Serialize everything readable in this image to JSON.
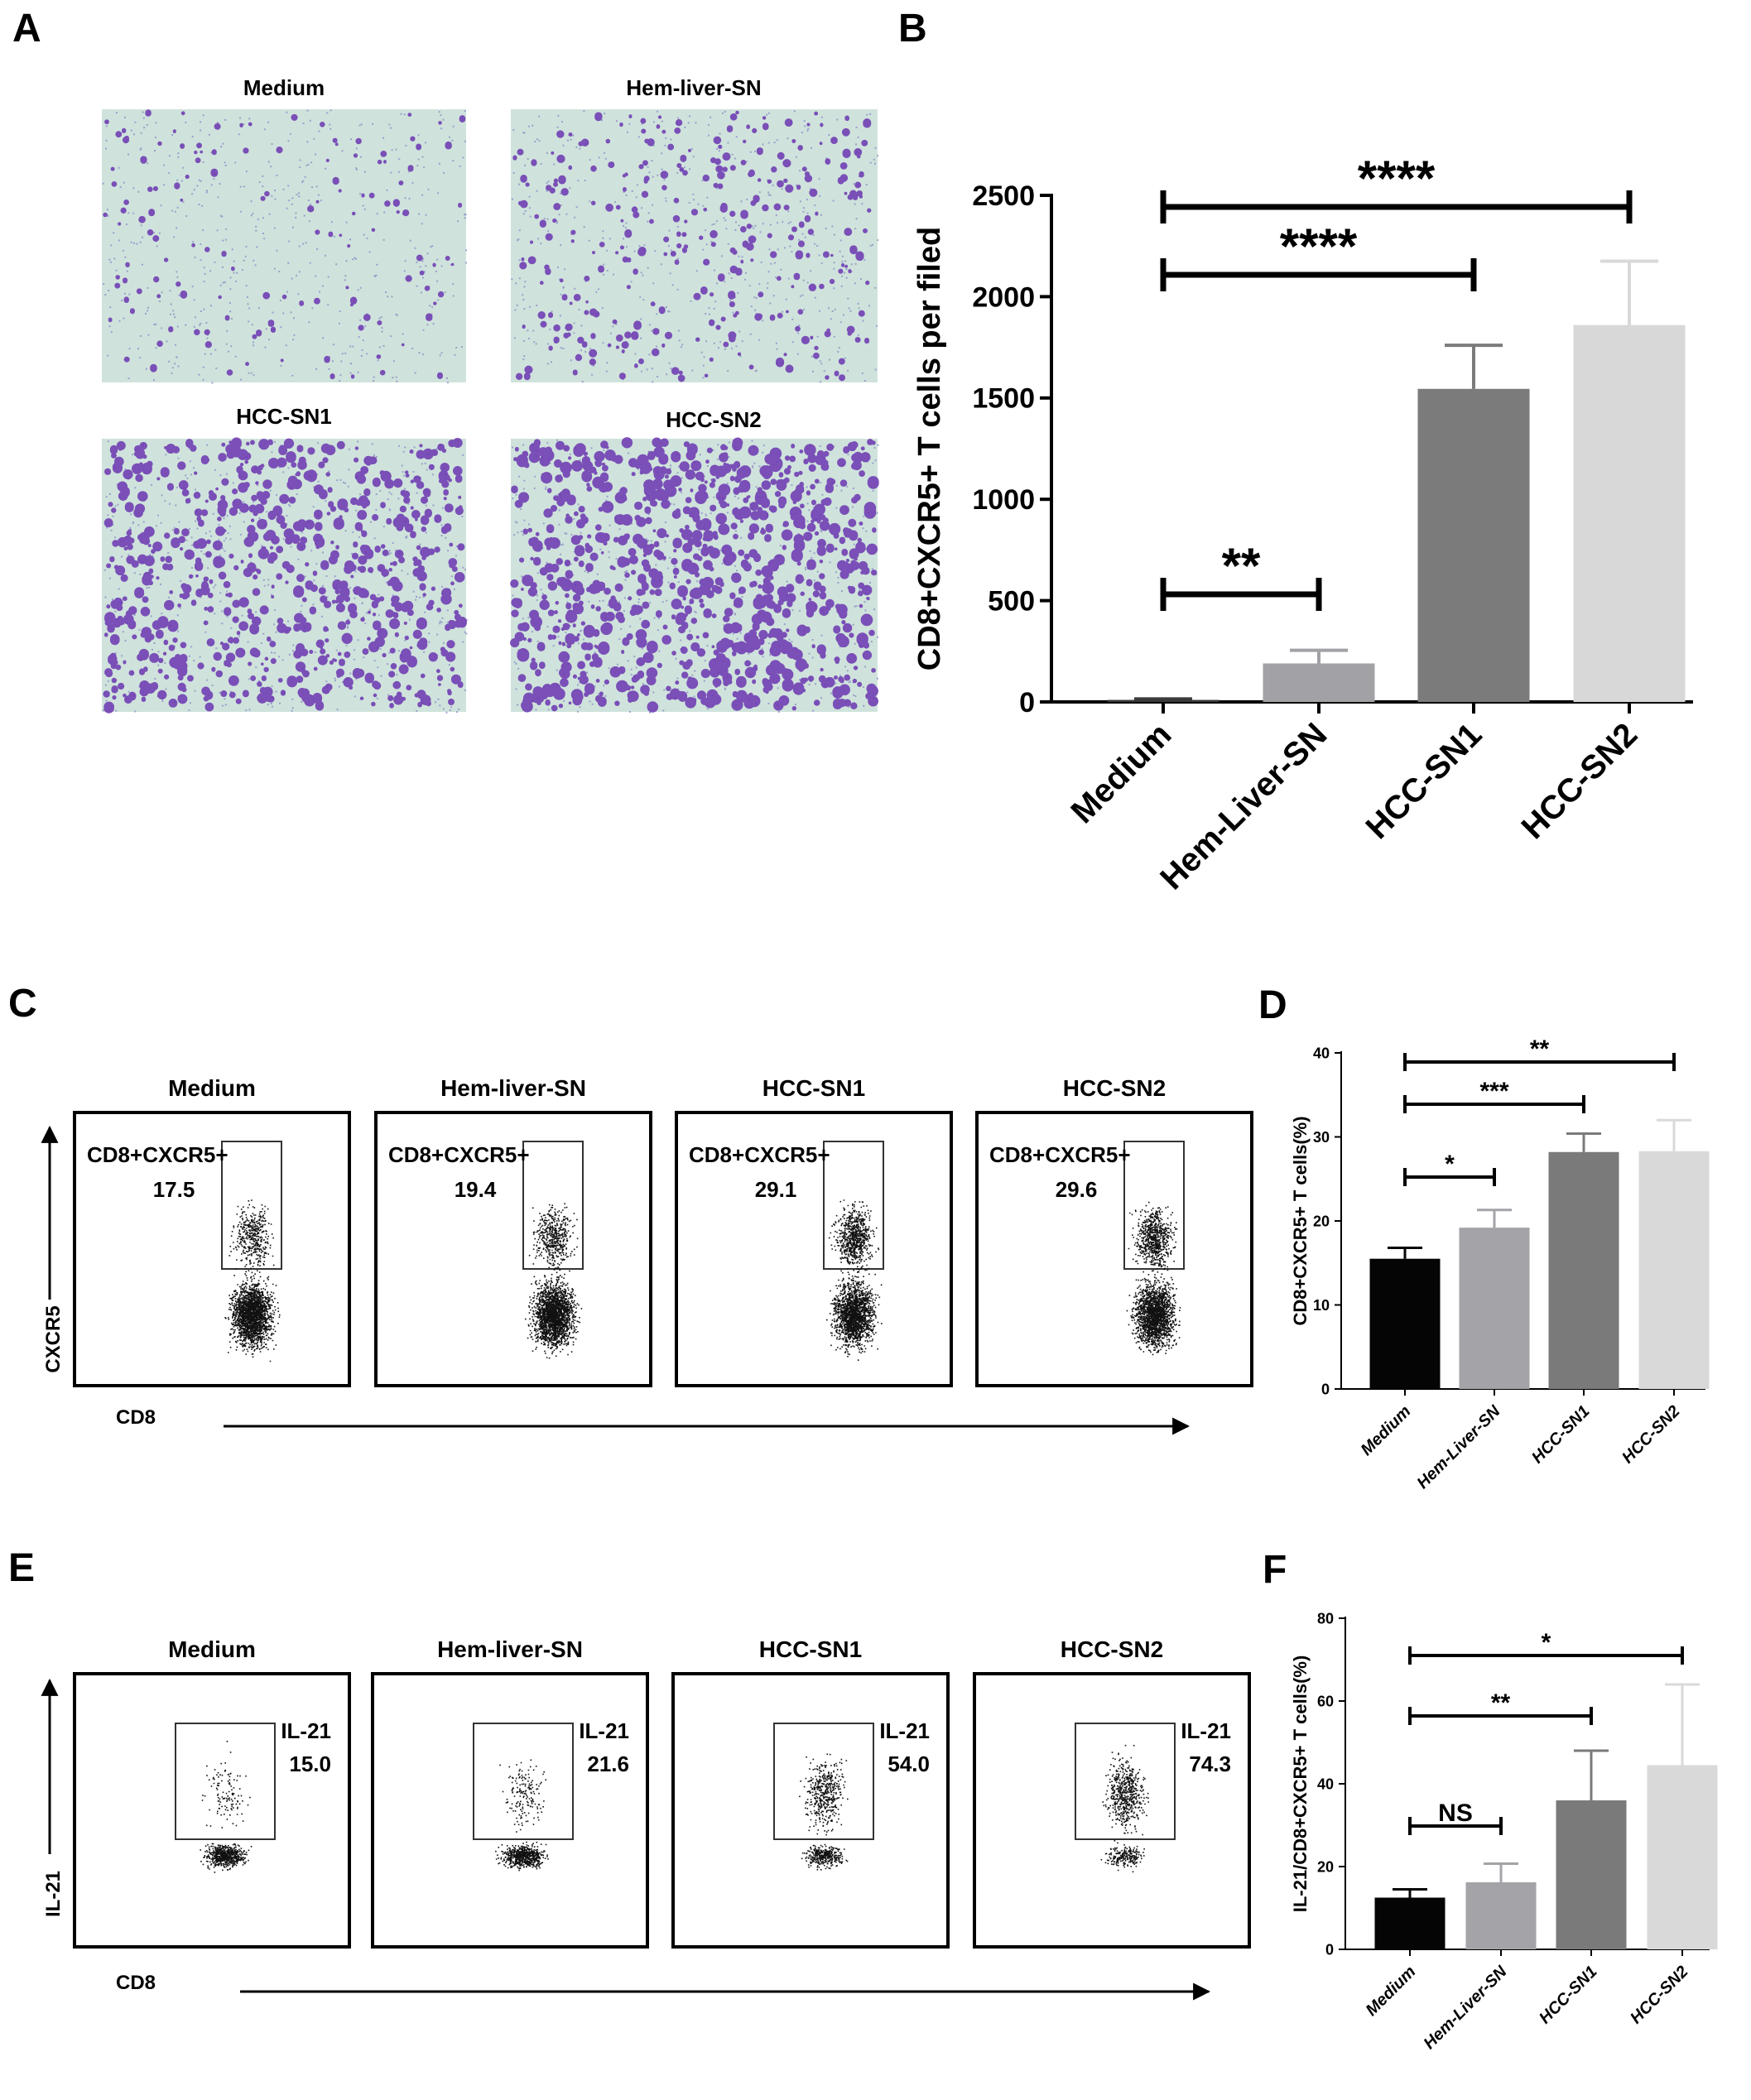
{
  "panels": {
    "A": {
      "letter": "A",
      "images": [
        {
          "label": "Medium",
          "density": 0.15
        },
        {
          "label": "Hem-liver-SN",
          "density": 0.35
        },
        {
          "label": "HCC-SN1",
          "density": 0.8
        },
        {
          "label": "HCC-SN2",
          "density": 1.0
        }
      ]
    },
    "B": {
      "letter": "B"
    },
    "C": {
      "letter": "C",
      "y_axis": "CXCR5",
      "x_axis": "CD8",
      "plots": [
        {
          "title": "Medium",
          "gate": "CD8+CXCR5+",
          "value": "17.5"
        },
        {
          "title": "Hem-liver-SN",
          "gate": "CD8+CXCR5+",
          "value": "19.4"
        },
        {
          "title": "HCC-SN1",
          "gate": "CD8+CXCR5+",
          "value": "29.1"
        },
        {
          "title": "HCC-SN2",
          "gate": "CD8+CXCR5+",
          "value": "29.6"
        }
      ]
    },
    "D": {
      "letter": "D"
    },
    "E": {
      "letter": "E",
      "y_axis": "IL-21",
      "x_axis": "CD8",
      "plots": [
        {
          "title": "Medium",
          "gate": "IL-21",
          "value": "15.0"
        },
        {
          "title": "Hem-liver-SN",
          "gate": "IL-21",
          "value": "21.6"
        },
        {
          "title": "HCC-SN1",
          "gate": "IL-21",
          "value": "54.0"
        },
        {
          "title": "HCC-SN2",
          "gate": "IL-21",
          "value": "74.3"
        }
      ]
    },
    "F": {
      "letter": "F"
    }
  },
  "chart_data": [
    {
      "panel": "B",
      "type": "bar",
      "categories": [
        "Medium",
        "Hem-Liver-SN",
        "HCC-SN1",
        "HCC-SN2"
      ],
      "values": [
        10,
        190,
        1545,
        1860
      ],
      "errors": [
        5,
        65,
        215,
        315
      ],
      "colors": [
        "#3a3a3a",
        "#a2a2a6",
        "#7b7b7b",
        "#d8d8d8"
      ],
      "ylabel": "CD8+CXCR5+ T cells per filed",
      "ylim": [
        0,
        2500
      ],
      "yticks": [
        0,
        500,
        1000,
        1500,
        2000,
        2500
      ],
      "significance": [
        {
          "from": 0,
          "to": 3,
          "label": "****"
        },
        {
          "from": 0,
          "to": 2,
          "label": "****"
        },
        {
          "from": 0,
          "to": 1,
          "label": "**"
        }
      ]
    },
    {
      "panel": "D",
      "type": "bar",
      "categories": [
        "Medium",
        "Hem-Liver-SN",
        "HCC-SN1",
        "HCC-SN2"
      ],
      "values": [
        15.5,
        19.2,
        28.2,
        28.3
      ],
      "errors": [
        1.3,
        2.1,
        2.2,
        3.7
      ],
      "colors": [
        "#050505",
        "#a3a3a8",
        "#7a7a7a",
        "#d9d9d9"
      ],
      "ylabel": "CD8+CXCR5+ T cells(%)",
      "ylim": [
        0,
        40
      ],
      "yticks": [
        0,
        10,
        20,
        30,
        40
      ],
      "significance": [
        {
          "from": 0,
          "to": 3,
          "label": "**"
        },
        {
          "from": 0,
          "to": 2,
          "label": "***"
        },
        {
          "from": 0,
          "to": 1,
          "label": "*"
        }
      ]
    },
    {
      "panel": "F",
      "type": "bar",
      "categories": [
        "Medium",
        "Hem-Liver-SN",
        "HCC-SN1",
        "HCC-SN2"
      ],
      "values": [
        12.5,
        16.2,
        36,
        44.5
      ],
      "errors": [
        2,
        4.5,
        12,
        19.5
      ],
      "colors": [
        "#050505",
        "#a3a3a8",
        "#7a7a7a",
        "#d9d9d9"
      ],
      "ylabel": "IL-21/CD8+CXCR5+ T cells(%)",
      "ylim": [
        0,
        80
      ],
      "yticks": [
        0,
        20,
        40,
        60,
        80
      ],
      "significance": [
        {
          "from": 0,
          "to": 3,
          "label": "*"
        },
        {
          "from": 0,
          "to": 2,
          "label": "**"
        },
        {
          "from": 0,
          "to": 1,
          "label": "NS"
        }
      ]
    }
  ]
}
